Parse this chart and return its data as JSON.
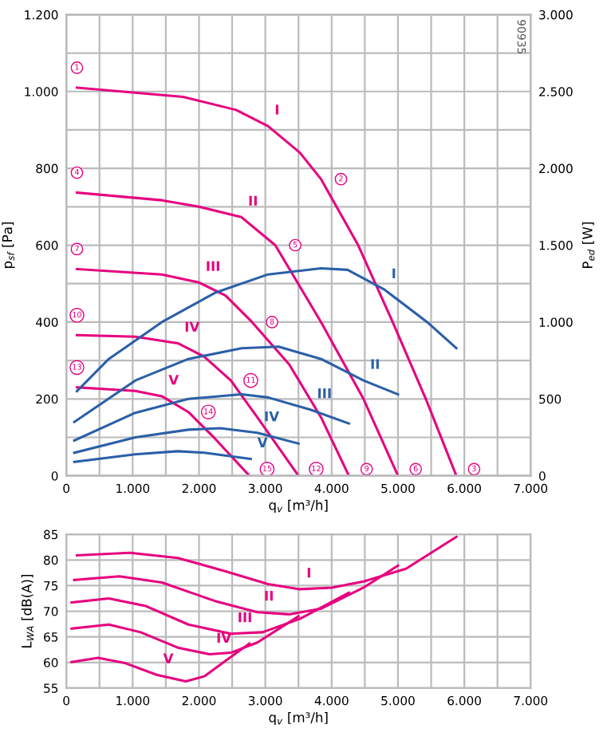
{
  "chart_data": [
    {
      "type": "line",
      "xlabel": "q$_{v}$ [m³/h]",
      "ylabel": "p$_{sf}$ [Pa]",
      "y2label": "P$_{ed}$ [W]",
      "grid": true,
      "legend": false,
      "marker": "none",
      "line_style": "solid",
      "xlim": [
        0,
        7000
      ],
      "xticks": [
        0,
        {
          "value": 500,
          "label": null
        },
        {
          "value": 1000,
          "label": "1.000"
        },
        {
          "value": 1500,
          "label": null
        },
        {
          "value": 2000,
          "label": "2.000"
        },
        {
          "value": 2500,
          "label": null
        },
        {
          "value": 3000,
          "label": "3.000"
        },
        {
          "value": 3500,
          "label": null
        },
        {
          "value": 4000,
          "label": "4.000"
        },
        {
          "value": 4500,
          "label": null
        },
        {
          "value": 5000,
          "label": "5.000"
        },
        {
          "value": 5500,
          "label": null
        },
        {
          "value": 6000,
          "label": "6.000"
        },
        {
          "value": 6500,
          "label": null
        },
        {
          "value": 7000,
          "label": "7.000"
        }
      ],
      "ylim": [
        0,
        1200
      ],
      "yticks": [
        0,
        {
          "value": 100,
          "label": null
        },
        200,
        {
          "value": 300,
          "label": null
        },
        400,
        {
          "value": 500,
          "label": null
        },
        600,
        {
          "value": 700,
          "label": null
        },
        800,
        {
          "value": 900,
          "label": null
        },
        {
          "value": 1000,
          "label": "1.000"
        },
        {
          "value": 1100,
          "label": null
        },
        {
          "value": 1200,
          "label": "1.200"
        }
      ],
      "y2lim": [
        0,
        3000
      ],
      "y2ticks": [
        0,
        500,
        {
          "value": 1000,
          "label": "1.000"
        },
        {
          "value": 1500,
          "label": "1.500"
        },
        {
          "value": 2000,
          "label": "2.000"
        },
        {
          "value": 2500,
          "label": "2.500"
        },
        {
          "value": 3000,
          "label": "3.000"
        }
      ],
      "series": [
        {
          "color": "#e6007e",
          "x": [
            160,
            1040,
            1760,
            2560,
            3040,
            3520,
            3840,
            4400,
            4920,
            5420,
            5880
          ],
          "values": [
            1010,
            997,
            986,
            952,
            910,
            841,
            772,
            600,
            400,
            200,
            0
          ]
        },
        {
          "color": "#e6007e",
          "x": [
            160,
            1440,
            2000,
            2640,
            3150,
            3840,
            4480,
            5000
          ],
          "values": [
            737,
            717,
            700,
            673,
            600,
            400,
            200,
            0
          ]
        },
        {
          "color": "#e6007e",
          "x": [
            160,
            1440,
            2000,
            2400,
            2800,
            3360,
            3840,
            4260
          ],
          "values": [
            538,
            524,
            503,
            469,
            400,
            290,
            152,
            0
          ]
        },
        {
          "color": "#e6007e",
          "x": [
            160,
            1040,
            1680,
            2080,
            2480,
            2880,
            3500
          ],
          "values": [
            366,
            362,
            345,
            310,
            248,
            152,
            0
          ]
        },
        {
          "color": "#e6007e",
          "x": [
            160,
            1040,
            1440,
            1840,
            2240,
            2760
          ],
          "values": [
            230,
            221,
            207,
            166,
            97,
            0
          ]
        },
        {
          "color": "#2b5fa8",
          "axis": "y2",
          "x": [
            160,
            640,
            1440,
            2240,
            3040,
            3840,
            4240,
            4800,
            5440,
            5880
          ],
          "values": [
            550,
            760,
            1000,
            1190,
            1310,
            1350,
            1340,
            1210,
            1000,
            830
          ]
        },
        {
          "color": "#2b5fa8",
          "axis": "y2",
          "x": [
            120,
            1040,
            1840,
            2640,
            3200,
            3840,
            4480,
            5000
          ],
          "values": [
            350,
            620,
            760,
            830,
            840,
            760,
            620,
            530
          ]
        },
        {
          "color": "#2b5fa8",
          "axis": "y2",
          "x": [
            120,
            1040,
            1840,
            2640,
            3040,
            3680,
            4260
          ],
          "values": [
            230,
            410,
            500,
            530,
            510,
            430,
            340
          ]
        },
        {
          "color": "#2b5fa8",
          "axis": "y2",
          "x": [
            120,
            1040,
            1840,
            2320,
            2880,
            3500
          ],
          "values": [
            150,
            250,
            300,
            310,
            280,
            210
          ]
        },
        {
          "color": "#2b5fa8",
          "axis": "y2",
          "x": [
            120,
            1040,
            1680,
            2080,
            2780
          ],
          "values": [
            90,
            140,
            160,
            150,
            110
          ]
        }
      ],
      "annotations": [
        {
          "text": "I",
          "x": 3040,
          "y": 910
        },
        {
          "text": "II",
          "x": 2640,
          "y": 673
        },
        {
          "text": "III",
          "x": 2000,
          "y": 503
        },
        {
          "text": "IV",
          "x": 1680,
          "y": 345
        },
        {
          "text": "V",
          "x": 1440,
          "y": 207
        },
        {
          "text": "I",
          "x": 4800,
          "y": 484
        },
        {
          "text": "II",
          "x": 4480,
          "y": 248
        },
        {
          "text": "III",
          "x": 3680,
          "y": 172
        },
        {
          "text": "IV",
          "x": 2880,
          "y": 112
        },
        {
          "text": "V",
          "x": 2780,
          "y": 44
        },
        {
          "text": "1",
          "x": 160,
          "y": 1010
        },
        {
          "text": "2",
          "x": 3840,
          "y": 772
        },
        {
          "text": "3",
          "x": 5880,
          "y": 0
        },
        {
          "text": "4",
          "x": 160,
          "y": 737
        },
        {
          "text": "5",
          "x": 3150,
          "y": 600
        },
        {
          "text": "6",
          "x": 5000,
          "y": 0
        },
        {
          "text": "7",
          "x": 160,
          "y": 538
        },
        {
          "text": "8",
          "x": 2800,
          "y": 400
        },
        {
          "text": "9",
          "x": 4260,
          "y": 0
        },
        {
          "text": "10",
          "x": 160,
          "y": 366
        },
        {
          "text": "11",
          "x": 2480,
          "y": 248
        },
        {
          "text": "12",
          "x": 3500,
          "y": 0
        },
        {
          "text": "13",
          "x": 160,
          "y": 230
        },
        {
          "text": "14",
          "x": 1840,
          "y": 166
        },
        {
          "text": "15",
          "x": 2760,
          "y": 0
        },
        "90935"
      ]
    },
    {
      "type": "line",
      "xlabel": "q$_{v}$ [m³/h]",
      "ylabel": "L$_{WA}$ [dB(A)]",
      "grid": true,
      "legend": false,
      "marker": "none",
      "line_style": "solid",
      "xlim": [
        0,
        7000
      ],
      "xticks": [
        0,
        {
          "value": 500,
          "label": null
        },
        {
          "value": 1000,
          "label": "1.000"
        },
        {
          "value": 1500,
          "label": null
        },
        {
          "value": 2000,
          "label": "2.000"
        },
        {
          "value": 2500,
          "label": null
        },
        {
          "value": 3000,
          "label": "3.000"
        },
        {
          "value": 3500,
          "label": null
        },
        {
          "value": 4000,
          "label": "4.000"
        },
        {
          "value": 4500,
          "label": null
        },
        {
          "value": 5000,
          "label": "5.000"
        },
        {
          "value": 5500,
          "label": null
        },
        {
          "value": 6000,
          "label": "6.000"
        },
        {
          "value": 6500,
          "label": null
        },
        {
          "value": 7000,
          "label": "7.000"
        }
      ],
      "ylim": [
        55,
        85
      ],
      "yticks": [
        55,
        60,
        65,
        70,
        75,
        80,
        85
      ],
      "series": [
        {
          "color": "#e6007e",
          "x": [
            160,
            960,
            1680,
            2400,
            3040,
            3520,
            4000,
            4480,
            5120,
            5880
          ],
          "values": [
            80.9,
            81.4,
            80.4,
            77.8,
            75.3,
            74.3,
            74.6,
            75.8,
            78.3,
            84.5
          ]
        },
        {
          "color": "#e6007e",
          "x": [
            120,
            800,
            1440,
            2240,
            2880,
            3360,
            3840,
            4480,
            5000
          ],
          "values": [
            76.1,
            76.8,
            75.6,
            72.0,
            69.8,
            69.4,
            70.5,
            74.6,
            78.9
          ]
        },
        {
          "color": "#e6007e",
          "x": [
            80,
            640,
            1200,
            1840,
            2480,
            2960,
            3520,
            4260
          ],
          "values": [
            71.7,
            72.5,
            71.0,
            67.4,
            65.6,
            65.9,
            68.5,
            73.6
          ]
        },
        {
          "color": "#e6007e",
          "x": [
            80,
            640,
            1120,
            1680,
            2160,
            2480,
            2880,
            3500
          ],
          "values": [
            66.6,
            67.4,
            65.9,
            62.9,
            61.6,
            61.9,
            63.9,
            69.0
          ]
        },
        {
          "color": "#e6007e",
          "x": [
            80,
            480,
            880,
            1360,
            1800,
            2080,
            2400,
            2760
          ],
          "values": [
            60.1,
            60.9,
            59.9,
            57.6,
            56.3,
            57.3,
            60.3,
            63.7
          ]
        }
      ],
      "annotations": [
        {
          "text": "I",
          "x": 3520,
          "y": 74.3
        },
        {
          "text": "II",
          "x": 2880,
          "y": 69.8
        },
        {
          "text": "III",
          "x": 2480,
          "y": 65.6
        },
        {
          "text": "IV",
          "x": 2160,
          "y": 61.6
        },
        {
          "text": "V",
          "x": 1360,
          "y": 57.6
        }
      ]
    }
  ]
}
